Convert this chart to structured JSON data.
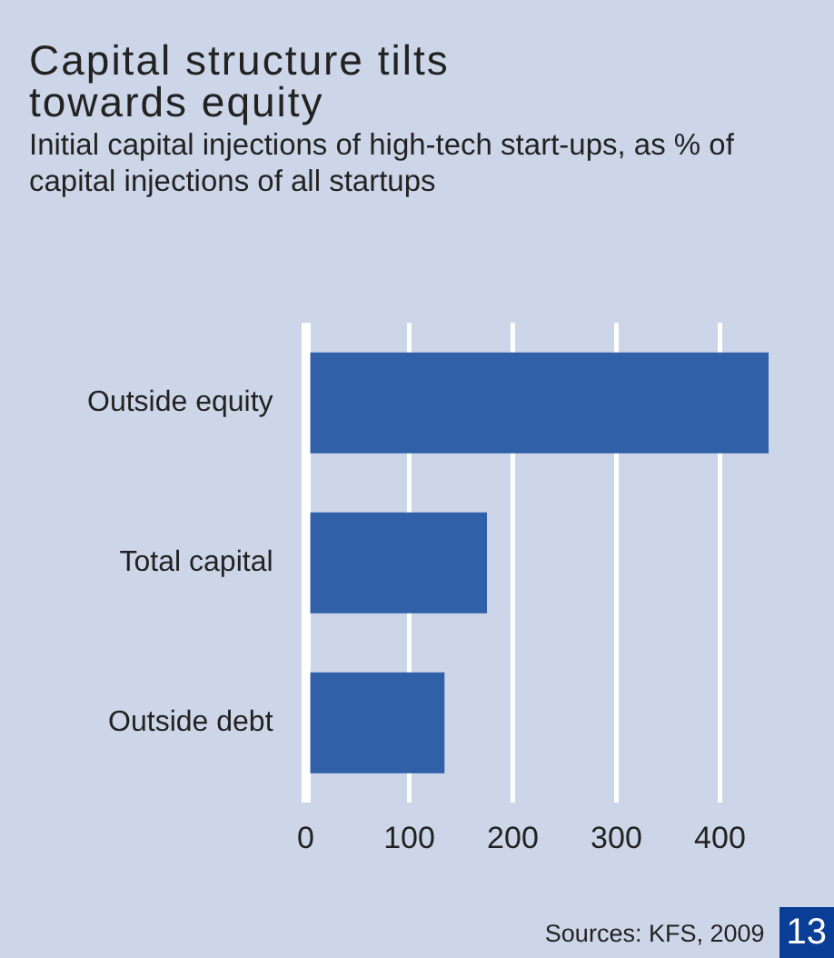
{
  "chart_data": {
    "type": "bar",
    "orientation": "horizontal",
    "title": "Capital structure tilts towards equity",
    "subtitle": "Initial capital injections of high-tech start-ups, as % of capital injections of all startups",
    "categories": [
      "Outside equity",
      "Total capital",
      "Outside debt"
    ],
    "values": [
      447,
      175,
      134
    ],
    "color": "#3060a8",
    "xlim": [
      0,
      447
    ],
    "xticks": [
      0,
      100,
      200,
      300,
      400
    ],
    "grid": "x",
    "annotations": [
      "Sources: KFS, 2009",
      "13"
    ]
  }
}
